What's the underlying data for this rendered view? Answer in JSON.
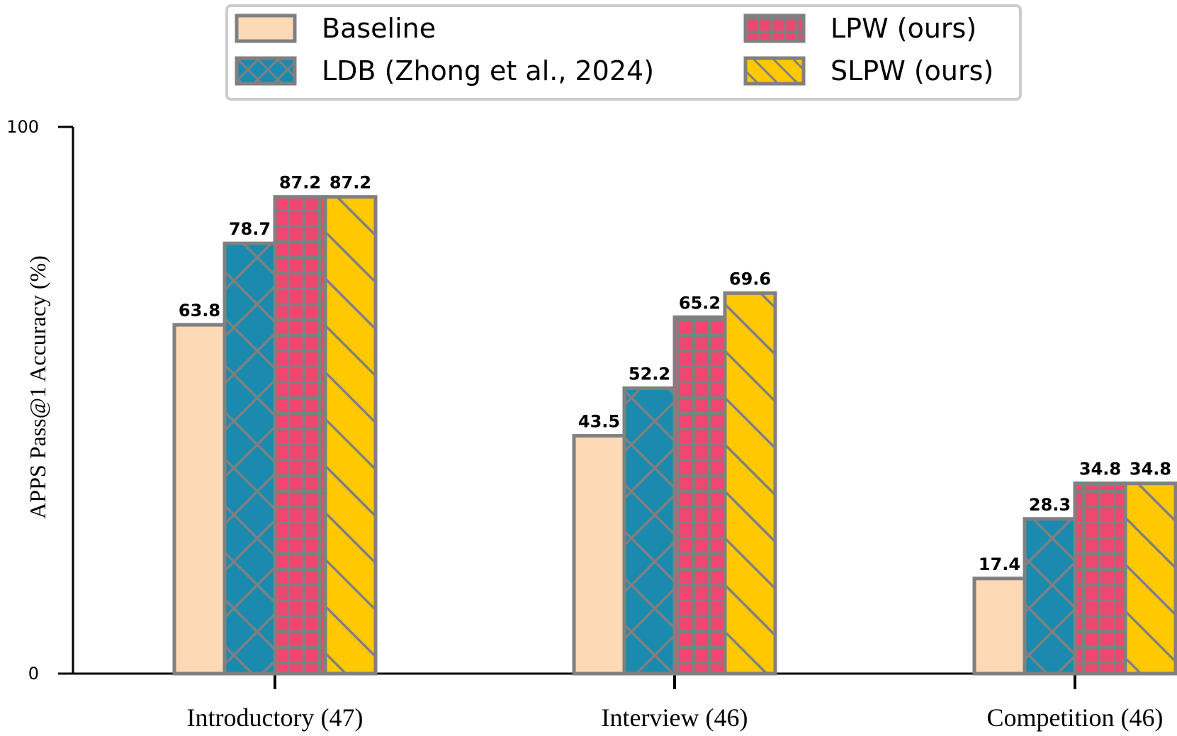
{
  "chart_data": {
    "type": "bar",
    "title": "",
    "xlabel": "",
    "ylabel": "APPS Pass@1 Accuracy (%)",
    "ylim": [
      0,
      100
    ],
    "yticks": [
      0,
      100
    ],
    "categories": [
      "Introductory (47)",
      "Interview (46)",
      "Competition (46)"
    ],
    "series": [
      {
        "name": "Baseline",
        "values": [
          63.8,
          43.5,
          17.4
        ],
        "color": "#fdd9b5",
        "hatch": "none"
      },
      {
        "name": "LDB (Zhong et al., 2024)",
        "values": [
          78.7,
          52.2,
          28.3
        ],
        "color": "#1a8aae",
        "hatch": "cross-diagonal"
      },
      {
        "name": "LPW (ours)",
        "values": [
          87.2,
          65.2,
          34.8
        ],
        "color": "#ef476f",
        "hatch": "grid"
      },
      {
        "name": "SLPW (ours)",
        "values": [
          87.2,
          69.6,
          34.8
        ],
        "color": "#ffc800",
        "hatch": "diagonal"
      }
    ],
    "value_labels": [
      [
        "63.8",
        "43.5",
        "17.4"
      ],
      [
        "78.7",
        "52.2",
        "28.3"
      ],
      [
        "87.2",
        "65.2",
        "34.8"
      ],
      [
        "87.2",
        "69.6",
        "34.8"
      ]
    ],
    "legend_position": "top-center",
    "bar_edge_color": "#808080",
    "grid": false
  }
}
